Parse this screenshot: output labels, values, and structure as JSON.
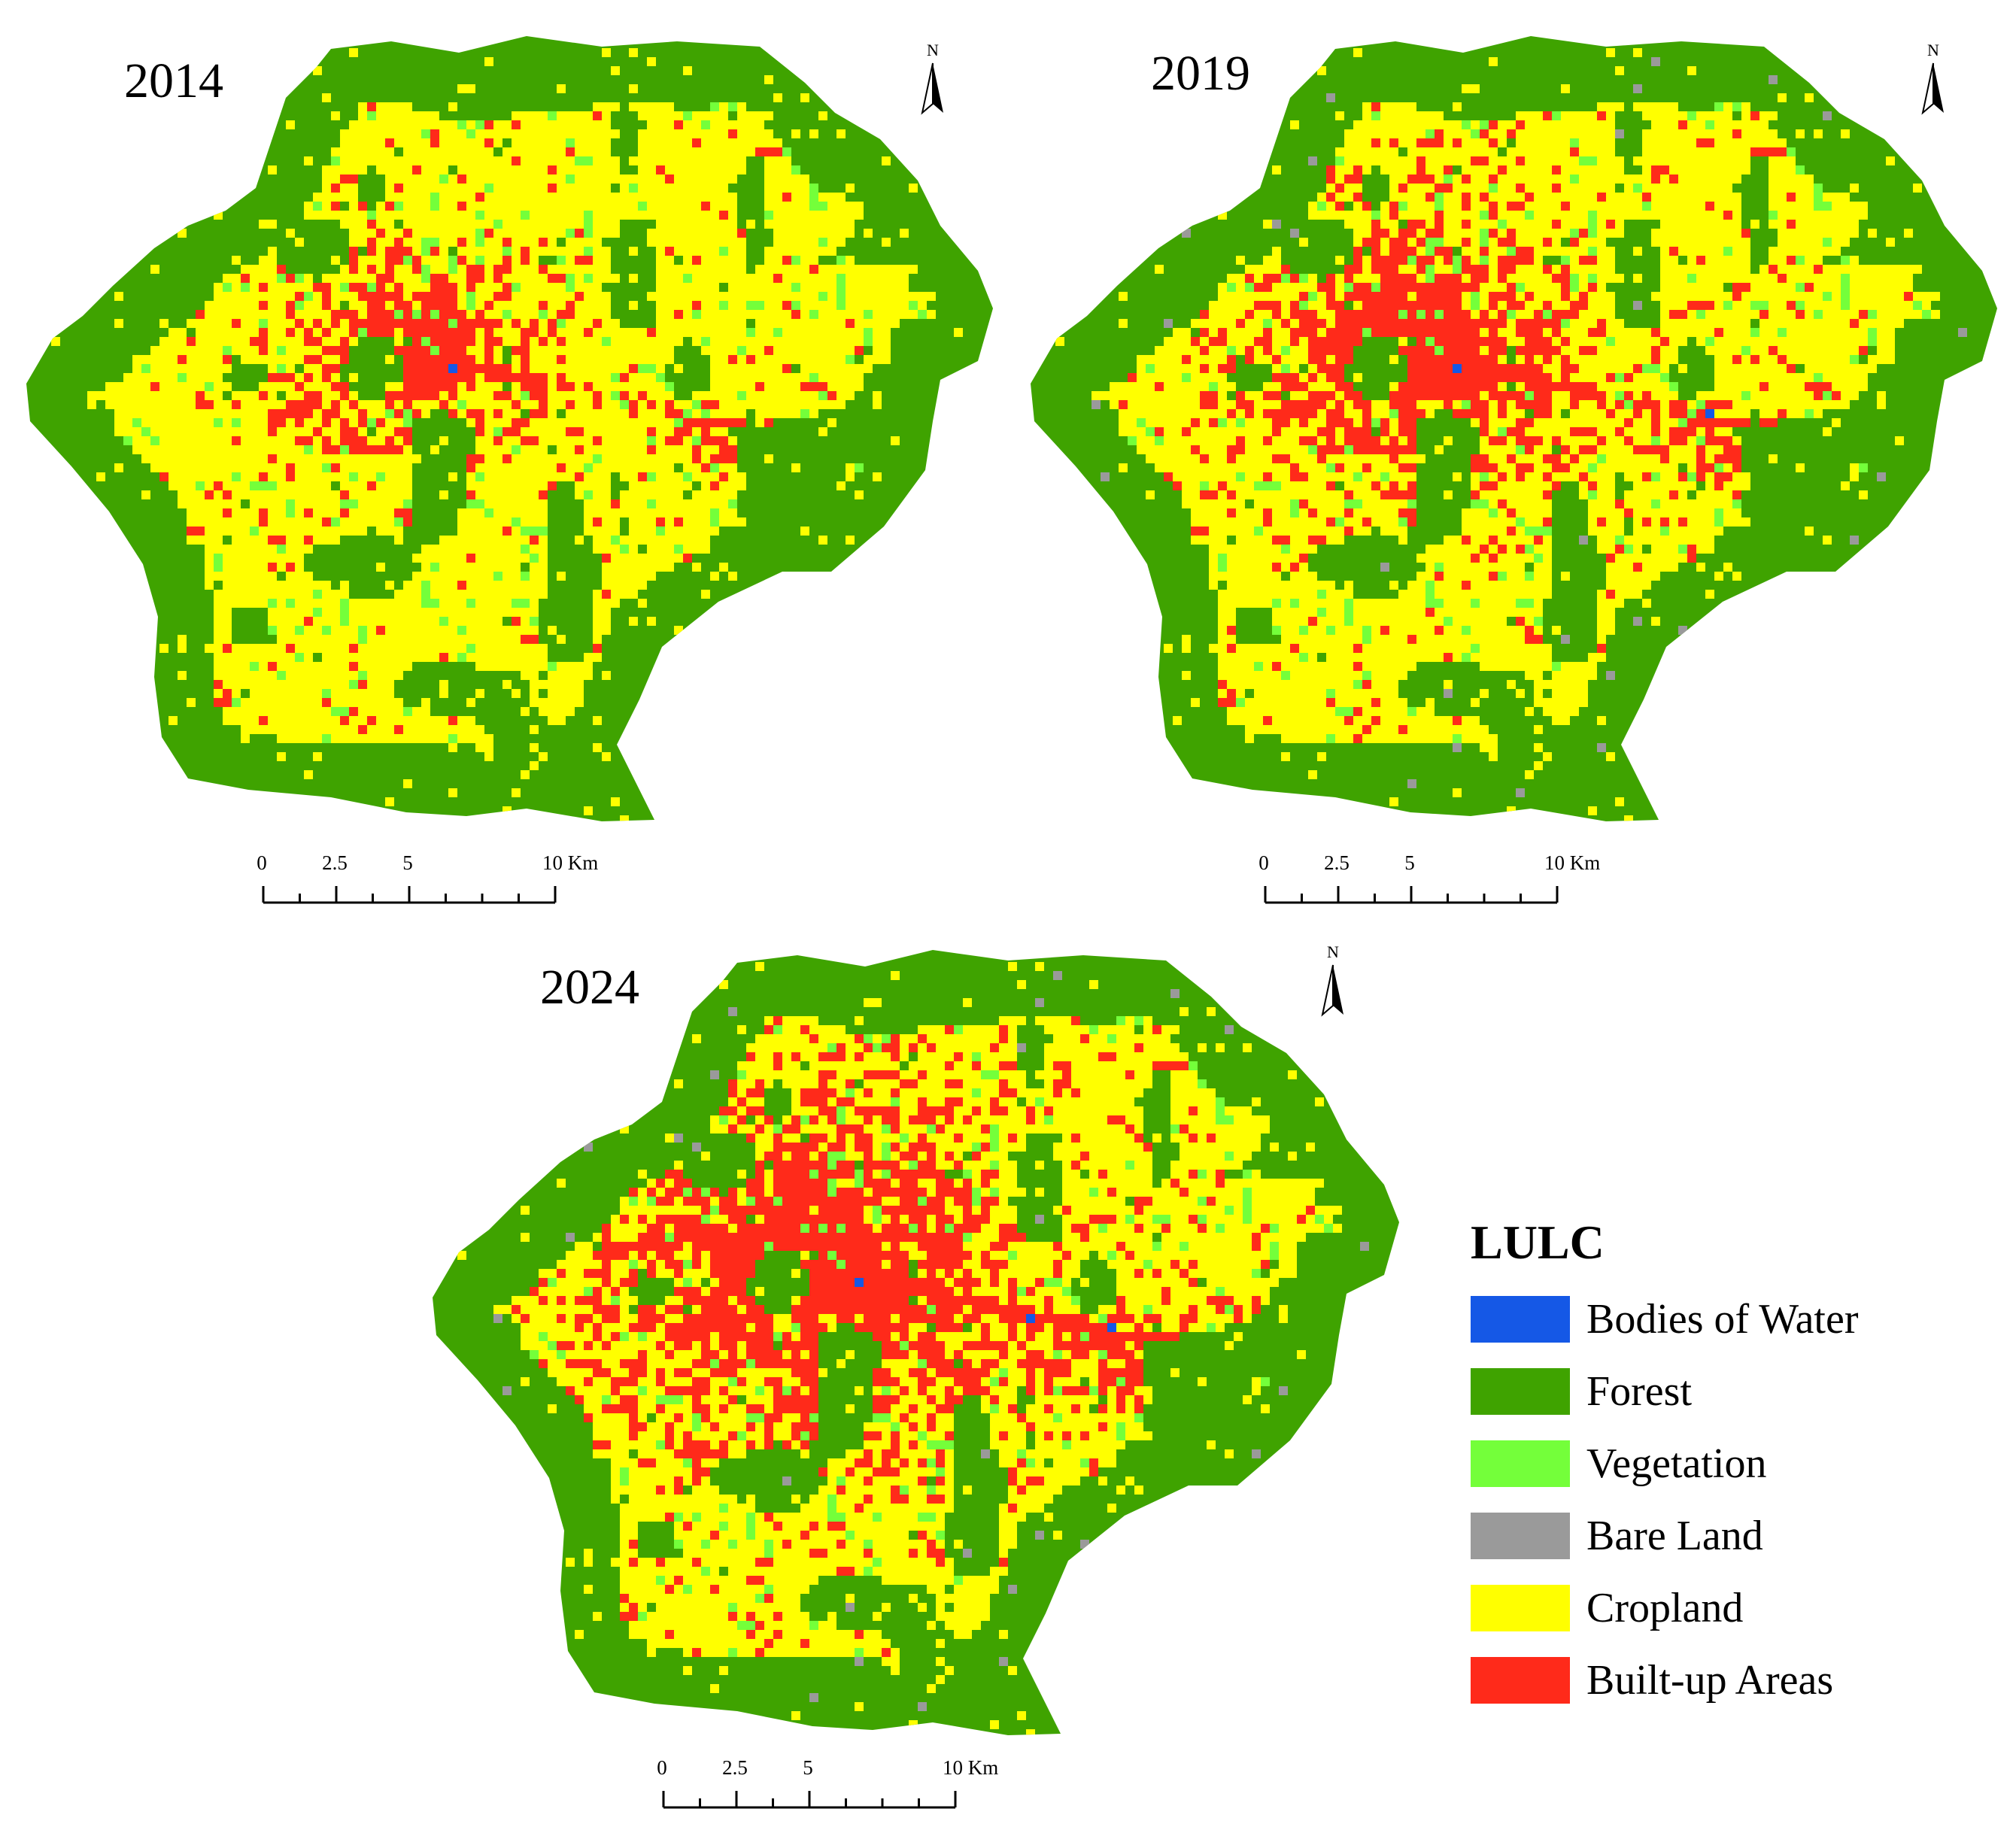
{
  "maps": [
    {
      "year": "2014",
      "builtup_spread": 1.0
    },
    {
      "year": "2019",
      "builtup_spread": 1.35
    },
    {
      "year": "2024",
      "builtup_spread": 1.75
    }
  ],
  "north_arrow": {
    "label": "N"
  },
  "scale_bar": {
    "ticks": [
      "0",
      "2.5",
      "5",
      "10 Km"
    ]
  },
  "legend": {
    "title": "LULC",
    "items": [
      {
        "label": "Bodies of Water",
        "color": "#1558e6"
      },
      {
        "label": "Forest",
        "color": "#3fa300"
      },
      {
        "label": "Vegetation",
        "color": "#74ff3a"
      },
      {
        "label": "Bare Land",
        "color": "#9a9a9a"
      },
      {
        "label": "Cropland",
        "color": "#ffff00"
      },
      {
        "label": "Built-up Areas",
        "color": "#ff2a1a"
      }
    ]
  }
}
